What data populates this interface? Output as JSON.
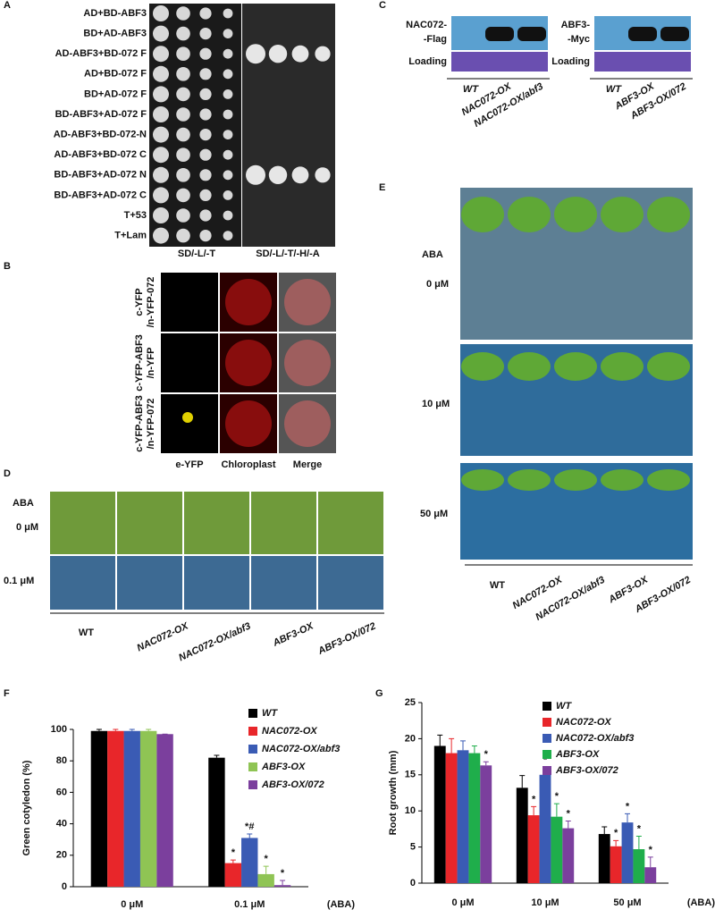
{
  "panels": {
    "A": {
      "letter": "A",
      "rows": [
        "AD+BD-ABF3",
        "BD+AD-ABF3",
        "AD-ABF3+BD-072 F",
        "AD+BD-072 F",
        "BD+AD-072 F",
        "BD-ABF3+AD-072 F",
        "AD-ABF3+BD-072-N",
        "AD-ABF3+BD-072 C",
        "BD-ABF3+AD-072 N",
        "BD-ABF3+AD-072 C",
        "T+53",
        "T+Lam"
      ],
      "media": [
        "SD/-L/-T",
        "SD/-L/-T/-H/-A"
      ]
    },
    "B": {
      "letter": "B",
      "rows": [
        [
          "c-YFP",
          "/n-YFP-072"
        ],
        [
          "c-YFP-ABF3",
          "/n-YFP"
        ],
        [
          "c-YFP-ABF3",
          "/n-YFP-072"
        ]
      ],
      "columns": [
        "e-YFP",
        "Chloroplast",
        "Merge"
      ]
    },
    "C": {
      "letter": "C",
      "blots": [
        {
          "label": [
            "NAC072-",
            "-Flag"
          ],
          "loading": "Loading",
          "lanes": [
            "WT",
            "NAC072-OX",
            "NAC072-OX/abf3"
          ]
        },
        {
          "label": [
            "ABF3-",
            "-Myc"
          ],
          "loading": "Loading",
          "lanes": [
            "WT",
            "ABF3-OX",
            "ABF3-OX/072"
          ]
        }
      ]
    },
    "D": {
      "letter": "D",
      "treatment": "ABA",
      "rows": [
        "0 μM",
        "0.1 μM"
      ],
      "genotypes": [
        "WT",
        "NAC072-OX",
        "NAC072-OX/abf3",
        "ABF3-OX",
        "ABF3-OX/072"
      ]
    },
    "E": {
      "letter": "E",
      "treatment": "ABA",
      "rows": [
        "0 μM",
        "10 μM",
        "50 μM"
      ],
      "genotypes": [
        "WT",
        "NAC072-OX",
        "NAC072-OX/abf3",
        "ABF3-OX",
        "ABF3-OX/072"
      ]
    },
    "F": {
      "letter": "F"
    },
    "G": {
      "letter": "G"
    }
  },
  "chart_data": [
    {
      "type": "bar",
      "y_label": "Green cotyledon (%)",
      "x_label": "(ABA)",
      "categories": [
        "0 μM",
        "0.1 μM"
      ],
      "ylim": [
        0,
        100
      ],
      "yticks": [
        0,
        20,
        40,
        60,
        80,
        100
      ],
      "series": [
        {
          "name": "WT",
          "color": "#000000",
          "values": [
            99,
            82
          ],
          "errors": [
            1,
            1.5
          ],
          "annotations": [
            null,
            null
          ]
        },
        {
          "name": "NAC072-OX",
          "color": "#e8262a",
          "values": [
            99,
            15
          ],
          "errors": [
            1,
            2
          ],
          "annotations": [
            null,
            "*"
          ]
        },
        {
          "name": "NAC072-OX/abf3",
          "color": "#3a5bb4",
          "values": [
            99,
            31
          ],
          "errors": [
            1,
            2.5
          ],
          "annotations": [
            null,
            "*#"
          ]
        },
        {
          "name": "ABF3-OX",
          "color": "#8fc454",
          "values": [
            99,
            8
          ],
          "errors": [
            1,
            5
          ],
          "annotations": [
            null,
            "*"
          ]
        },
        {
          "name": "ABF3-OX/072",
          "color": "#7b3f9d",
          "values": [
            97,
            1
          ],
          "errors": [
            0,
            3
          ],
          "annotations": [
            null,
            "*"
          ]
        }
      ]
    },
    {
      "type": "bar",
      "y_label": "Root growth (mm)",
      "x_label": "(ABA)",
      "categories": [
        "0 μM",
        "10 μM",
        "50 μM"
      ],
      "ylim": [
        0,
        25
      ],
      "yticks": [
        0,
        5,
        10,
        15,
        20,
        25
      ],
      "series": [
        {
          "name": "WT",
          "color": "#000000",
          "values": [
            19,
            13.2,
            6.8
          ],
          "errors": [
            1.5,
            1.7,
            1
          ],
          "annotations": [
            null,
            null,
            null
          ]
        },
        {
          "name": "NAC072-OX",
          "color": "#e8262a",
          "values": [
            18,
            9.4,
            5.1
          ],
          "errors": [
            2,
            1.2,
            0.8
          ],
          "annotations": [
            null,
            "*",
            "*"
          ]
        },
        {
          "name": "NAC072-OX/abf3",
          "color": "#3a5bb4",
          "values": [
            18.4,
            15,
            8.4
          ],
          "errors": [
            1.3,
            1,
            1.2
          ],
          "annotations": [
            null,
            "*",
            "*"
          ]
        },
        {
          "name": "ABF3-OX",
          "color": "#1fae4b",
          "values": [
            18,
            9.2,
            4.7
          ],
          "errors": [
            1,
            1.8,
            1.8
          ],
          "annotations": [
            null,
            "*",
            "*"
          ]
        },
        {
          "name": "ABF3-OX/072",
          "color": "#7b3f9d",
          "values": [
            16.3,
            7.6,
            2.2
          ],
          "errors": [
            0.5,
            1,
            1.4
          ],
          "annotations": [
            "*",
            "*",
            "*"
          ]
        }
      ]
    }
  ]
}
